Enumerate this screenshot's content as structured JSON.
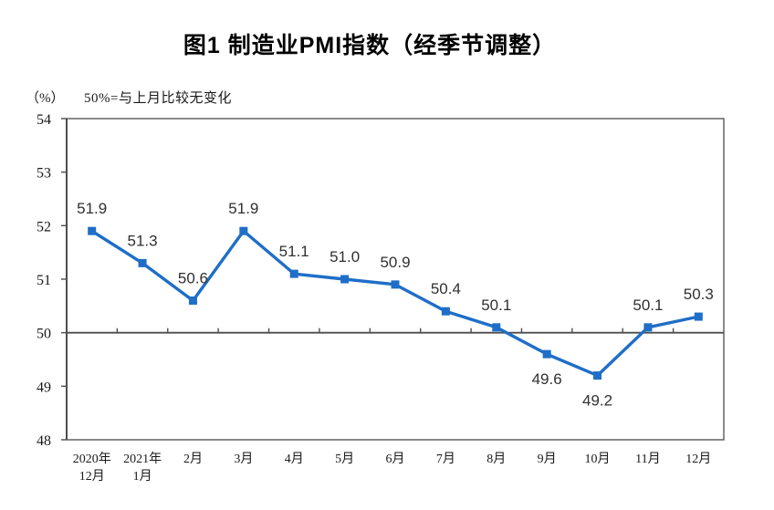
{
  "title": "图1 制造业PMI指数（经季节调整）",
  "unit_label": "（%）",
  "reference_note": "50%=与上月比较无变化",
  "colors": {
    "series_line": "#1f6ec8",
    "axis": "#4d4d4d",
    "plot_border": "#595959",
    "data_label": "#303030",
    "tick_label": "#1a1a1a",
    "background": "#ffffff"
  },
  "chart_data": {
    "type": "line",
    "title": "图1 制造业PMI指数（经季节调整）",
    "subtitle": "50%=与上月比较无变化",
    "unit": "（%）",
    "categories": [
      "2020年12月",
      "2021年1月",
      "2月",
      "3月",
      "4月",
      "5月",
      "6月",
      "7月",
      "8月",
      "9月",
      "10月",
      "11月",
      "12月"
    ],
    "category_label_lines": [
      [
        "2020年",
        "12月"
      ],
      [
        "2021年",
        "1月"
      ],
      [
        "2月"
      ],
      [
        "3月"
      ],
      [
        "4月"
      ],
      [
        "5月"
      ],
      [
        "6月"
      ],
      [
        "7月"
      ],
      [
        "8月"
      ],
      [
        "9月"
      ],
      [
        "10月"
      ],
      [
        "11月"
      ],
      [
        "12月"
      ]
    ],
    "values": [
      51.9,
      51.3,
      50.6,
      51.9,
      51.1,
      51.0,
      50.9,
      50.4,
      50.1,
      49.6,
      49.2,
      50.1,
      50.3
    ],
    "data_labels": [
      "51.9",
      "51.3",
      "50.6",
      "51.9",
      "51.1",
      "51.0",
      "50.9",
      "50.4",
      "50.1",
      "49.6",
      "49.2",
      "50.1",
      "50.3"
    ],
    "labels_below_indices": [
      9,
      10
    ],
    "ylim": [
      48,
      54
    ],
    "ytick_step": 1,
    "ytick_labels": [
      "48",
      "49",
      "50",
      "51",
      "52",
      "53",
      "54"
    ],
    "reference_line_y": 50,
    "grid": false,
    "legend": "none",
    "marker": "square",
    "line_color": "#1f6ec8"
  }
}
